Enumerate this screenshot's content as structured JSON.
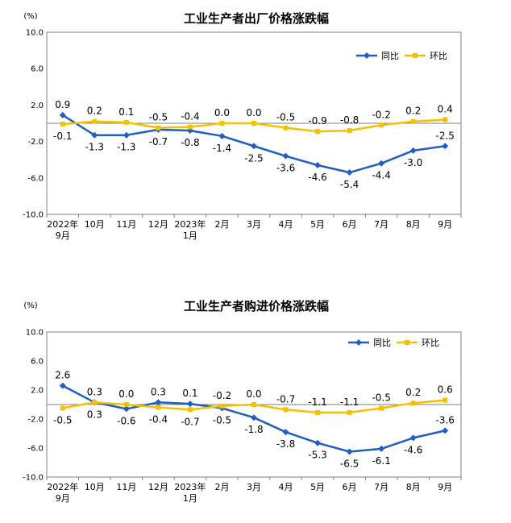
{
  "chart_data": [
    {
      "type": "line",
      "title": "工业生产者出厂价格涨跌幅",
      "unit": "(%)",
      "categories": [
        "2022年9月",
        "10月",
        "11月",
        "12月",
        "2023年1月",
        "2月",
        "3月",
        "4月",
        "5月",
        "6月",
        "7月",
        "8月",
        "9月"
      ],
      "category_lines": [
        [
          "2022年",
          "9月"
        ],
        [
          "10月"
        ],
        [
          "11月"
        ],
        [
          "12月"
        ],
        [
          "2023年",
          "1月"
        ],
        [
          "2月"
        ],
        [
          "3月"
        ],
        [
          "4月"
        ],
        [
          "5月"
        ],
        [
          "6月"
        ],
        [
          "7月"
        ],
        [
          "8月"
        ],
        [
          "9月"
        ]
      ],
      "ylim": [
        -10,
        10
      ],
      "yticks": [
        10,
        6,
        2,
        -2,
        -6,
        -10
      ],
      "ytick_labels": [
        "10.0",
        "6.0",
        "2.0",
        "-2.0",
        "-6.0",
        "-10.0"
      ],
      "legend_position": "top-right",
      "series": [
        {
          "name": "同比",
          "color": "#1f5fbf",
          "marker": "diamond",
          "values": [
            0.9,
            -1.3,
            -1.3,
            -0.7,
            -0.8,
            -1.4,
            -2.5,
            -3.6,
            -4.6,
            -5.4,
            -4.4,
            -3.0,
            -2.5
          ],
          "labels": [
            "0.9",
            "-1.3",
            "-1.3",
            "-0.7",
            "-0.8",
            "-1.4",
            "-2.5",
            "-3.6",
            "-4.6",
            "-5.4",
            "-4.4",
            "-3.0",
            "-2.5"
          ]
        },
        {
          "name": "环比",
          "color": "#f5c000",
          "marker": "square",
          "values": [
            -0.1,
            0.2,
            0.1,
            -0.5,
            -0.4,
            0.0,
            0.0,
            -0.5,
            -0.9,
            -0.8,
            -0.2,
            0.2,
            0.4
          ],
          "labels": [
            "-0.1",
            "0.2",
            "0.1",
            "-0.5",
            "-0.4",
            "0.0",
            "0.0",
            "-0.5",
            "-0.9",
            "-0.8",
            "-0.2",
            "0.2",
            "0.4"
          ]
        }
      ]
    },
    {
      "type": "line",
      "title": "工业生产者购进价格涨跌幅",
      "unit": "(%)",
      "categories": [
        "2022年9月",
        "10月",
        "11月",
        "12月",
        "2023年1月",
        "2月",
        "3月",
        "4月",
        "5月",
        "6月",
        "7月",
        "8月",
        "9月"
      ],
      "category_lines": [
        [
          "2022年",
          "9月"
        ],
        [
          "10月"
        ],
        [
          "11月"
        ],
        [
          "12月"
        ],
        [
          "2023年",
          "1月"
        ],
        [
          "2月"
        ],
        [
          "3月"
        ],
        [
          "4月"
        ],
        [
          "5月"
        ],
        [
          "6月"
        ],
        [
          "7月"
        ],
        [
          "8月"
        ],
        [
          "9月"
        ]
      ],
      "ylim": [
        -10,
        10
      ],
      "yticks": [
        10,
        6,
        2,
        -2,
        -6,
        -10
      ],
      "ytick_labels": [
        "10.0",
        "6.0",
        "2.0",
        "-2.0",
        "-6.0",
        "-10.0"
      ],
      "legend_position": "top-right",
      "series": [
        {
          "name": "同比",
          "color": "#1f5fbf",
          "marker": "diamond",
          "values": [
            2.6,
            0.3,
            -0.6,
            0.3,
            0.1,
            -0.5,
            -1.8,
            -3.8,
            -5.3,
            -6.5,
            -6.1,
            -4.6,
            -3.6
          ],
          "labels": [
            "2.6",
            "0.3",
            "-0.6",
            "0.3",
            "0.1",
            "-0.5",
            "-1.8",
            "-3.8",
            "-5.3",
            "-6.5",
            "-6.1",
            "-4.6",
            "-3.6"
          ]
        },
        {
          "name": "环比",
          "color": "#f5c000",
          "marker": "square",
          "values": [
            -0.5,
            0.3,
            0.0,
            -0.4,
            -0.7,
            -0.2,
            0.0,
            -0.7,
            -1.1,
            -1.1,
            -0.5,
            0.2,
            0.6
          ],
          "labels": [
            "-0.5",
            "0.3",
            "0.0",
            "-0.4",
            "-0.7",
            "-0.2",
            "0.0",
            "-0.7",
            "-1.1",
            "-1.1",
            "-0.5",
            "0.2",
            "0.6"
          ]
        }
      ]
    }
  ]
}
